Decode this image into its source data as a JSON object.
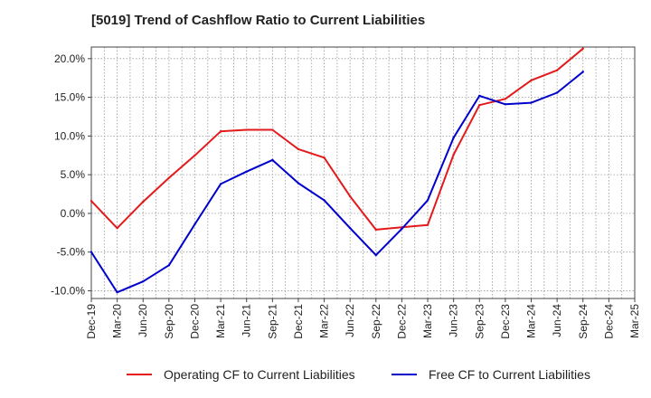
{
  "chart_data": {
    "type": "line",
    "title": "[5019]  Trend of Cashflow Ratio to Current Liabilities",
    "xlabel": "",
    "ylabel": "",
    "x": [
      "Dec-19",
      "Mar-20",
      "Jun-20",
      "Sep-20",
      "Dec-20",
      "Mar-21",
      "Jun-21",
      "Sep-21",
      "Dec-21",
      "Mar-22",
      "Jun-22",
      "Sep-22",
      "Dec-22",
      "Mar-23",
      "Jun-23",
      "Sep-23",
      "Dec-23",
      "Mar-24",
      "Jun-24",
      "Sep-24",
      "Dec-24",
      "Mar-25"
    ],
    "y_ticks": [
      "20.0%",
      "15.0%",
      "10.0%",
      "5.0%",
      "0.0%",
      "-5.0%",
      "-10.0%"
    ],
    "y_tick_values": [
      20,
      15,
      10,
      5,
      0,
      -5,
      -10
    ],
    "ylim": [
      -11,
      21.5
    ],
    "grid": true,
    "legend_position": "bottom",
    "series": [
      {
        "name": "Operating CF to Current Liabilities",
        "color": "#e31a1c",
        "values": [
          1.6,
          -1.9,
          1.5,
          4.6,
          7.5,
          10.6,
          10.8,
          10.8,
          8.3,
          7.2,
          2.2,
          -2.1,
          -1.8,
          -1.5,
          7.6,
          14.0,
          14.8,
          17.2,
          18.5,
          21.3,
          null,
          null
        ]
      },
      {
        "name": "Free CF to Current Liabilities",
        "color": "#0000cc",
        "values": [
          -5.0,
          -10.2,
          -8.8,
          -6.7,
          -1.4,
          3.8,
          5.4,
          6.9,
          3.9,
          1.7,
          -1.9,
          -5.4,
          -2.0,
          1.7,
          9.8,
          15.2,
          14.1,
          14.3,
          15.6,
          18.3,
          null,
          null
        ]
      }
    ]
  }
}
